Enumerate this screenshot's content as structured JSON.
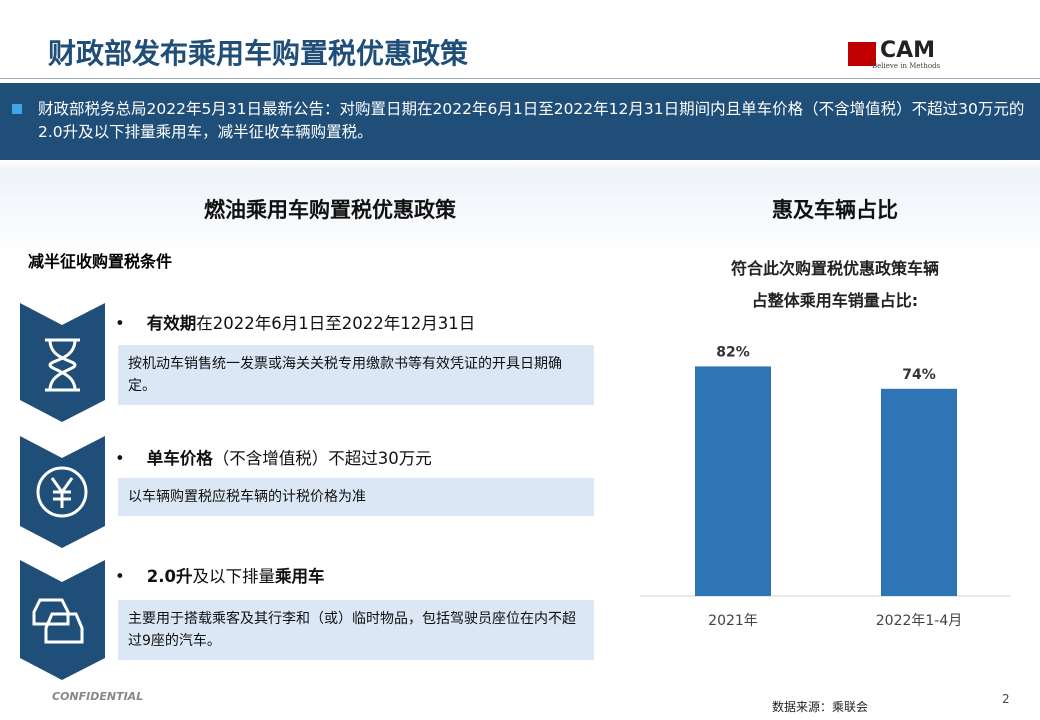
{
  "header": {
    "title": "财政部发布乘用车购置税优惠政策",
    "logo": "CAM",
    "logo_tagline": "Believe in Methods"
  },
  "banner": "财政部税务总局2022年5月31日最新公告：对购置日期在2022年6月1日至2022年12月31日期间内且单车价格（不含增值税）不超过30万元的2.0升及以下排量乘用车，减半征收车辆购置税。",
  "left": {
    "title": "燃油乘用车购置税优惠政策",
    "subtitle": "减半征收购置税条件",
    "items": [
      {
        "parts": [
          {
            "text": "有效期",
            "bold": true
          },
          {
            "text": "在2022年6月1日至2022年12月31日",
            "bold": false
          }
        ],
        "desc": "按机动车销售统一发票或海关关税专用缴款书等有效凭证的开具日期确定。"
      },
      {
        "parts": [
          {
            "text": "单车价格",
            "bold": true
          },
          {
            "text": "（不含增值税）不超过30万元",
            "bold": false
          }
        ],
        "desc": "以车辆购置税应税车辆的计税价格为准"
      },
      {
        "parts": [
          {
            "text": "2.0升",
            "bold": true
          },
          {
            "text": "及以下排量",
            "bold": false
          },
          {
            "text": "乘用车",
            "bold": true
          }
        ],
        "desc": "主要用于搭载乘客及其行李和（或）临时物品，包括驾驶员座位在内不超过9座的汽车。"
      }
    ]
  },
  "chart_data": {
    "type": "bar",
    "section_title": "惠及车辆占比",
    "title": [
      "符合此次购置税优惠政策车辆",
      "占整体乘用车销量占比:"
    ],
    "categories": [
      "2021年",
      "2022年1-4月"
    ],
    "values": [
      82,
      74
    ],
    "value_labels": [
      "82%",
      "74%"
    ],
    "color": "#2e75b6",
    "ylim": [
      0,
      100
    ]
  },
  "footer": {
    "confidential": "CONFIDENTIAL",
    "source": "数据来源：乘联会",
    "page": "2"
  }
}
